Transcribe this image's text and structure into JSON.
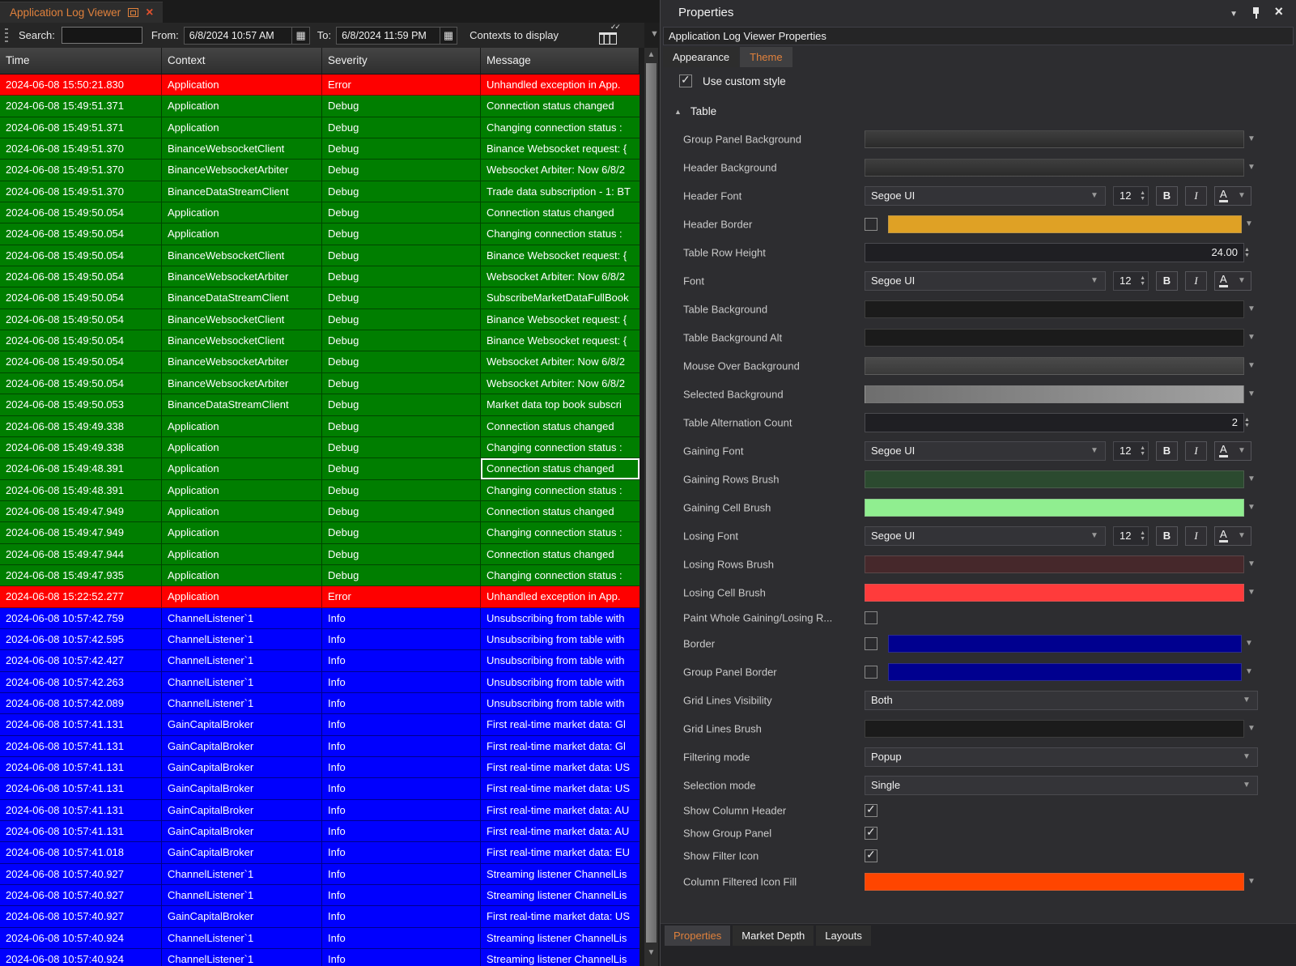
{
  "colors": {
    "accent_orange": "#E0813C",
    "severity": {
      "error": "#FE0000",
      "debug": "#007E00",
      "info": "#0000FE"
    },
    "selected_cell_outline": "#FFFFFF"
  },
  "log_viewer": {
    "tab_title": "Application Log Viewer",
    "toolbar": {
      "search_label": "Search:",
      "search_value": "",
      "from_label": "From:",
      "from_value": "6/8/2024 10:57 AM",
      "to_label": "To:",
      "to_value": "6/8/2024 11:59 PM",
      "contexts_label": "Contexts to display"
    },
    "columns": [
      "Time",
      "Context",
      "Severity",
      "Message"
    ],
    "rows": [
      {
        "time": "2024-06-08 15:50:21.830",
        "context": "Application",
        "severity": "Error",
        "message": "Unhandled exception in App."
      },
      {
        "time": "2024-06-08 15:49:51.371",
        "context": "Application",
        "severity": "Debug",
        "message": "Connection status changed"
      },
      {
        "time": "2024-06-08 15:49:51.371",
        "context": "Application",
        "severity": "Debug",
        "message": "Changing connection status :"
      },
      {
        "time": "2024-06-08 15:49:51.370",
        "context": "BinanceWebsocketClient",
        "severity": "Debug",
        "message": "Binance Websocket request: {"
      },
      {
        "time": "2024-06-08 15:49:51.370",
        "context": "BinanceWebsocketArbiter",
        "severity": "Debug",
        "message": "Websocket Arbiter: Now 6/8/2"
      },
      {
        "time": "2024-06-08 15:49:51.370",
        "context": "BinanceDataStreamClient",
        "severity": "Debug",
        "message": "Trade data subscription - 1: BT"
      },
      {
        "time": "2024-06-08 15:49:50.054",
        "context": "Application",
        "severity": "Debug",
        "message": "Connection status changed"
      },
      {
        "time": "2024-06-08 15:49:50.054",
        "context": "Application",
        "severity": "Debug",
        "message": "Changing connection status :"
      },
      {
        "time": "2024-06-08 15:49:50.054",
        "context": "BinanceWebsocketClient",
        "severity": "Debug",
        "message": "Binance Websocket request: {"
      },
      {
        "time": "2024-06-08 15:49:50.054",
        "context": "BinanceWebsocketArbiter",
        "severity": "Debug",
        "message": "Websocket Arbiter: Now 6/8/2"
      },
      {
        "time": "2024-06-08 15:49:50.054",
        "context": "BinanceDataStreamClient",
        "severity": "Debug",
        "message": "SubscribeMarketDataFullBook"
      },
      {
        "time": "2024-06-08 15:49:50.054",
        "context": "BinanceWebsocketClient",
        "severity": "Debug",
        "message": "Binance Websocket request: {"
      },
      {
        "time": "2024-06-08 15:49:50.054",
        "context": "BinanceWebsocketClient",
        "severity": "Debug",
        "message": "Binance Websocket request: {"
      },
      {
        "time": "2024-06-08 15:49:50.054",
        "context": "BinanceWebsocketArbiter",
        "severity": "Debug",
        "message": "Websocket Arbiter: Now 6/8/2"
      },
      {
        "time": "2024-06-08 15:49:50.054",
        "context": "BinanceWebsocketArbiter",
        "severity": "Debug",
        "message": "Websocket Arbiter: Now 6/8/2"
      },
      {
        "time": "2024-06-08 15:49:50.053",
        "context": "BinanceDataStreamClient",
        "severity": "Debug",
        "message": "Market data top book subscri"
      },
      {
        "time": "2024-06-08 15:49:49.338",
        "context": "Application",
        "severity": "Debug",
        "message": "Connection status changed"
      },
      {
        "time": "2024-06-08 15:49:49.338",
        "context": "Application",
        "severity": "Debug",
        "message": "Changing connection status :"
      },
      {
        "time": "2024-06-08 15:49:48.391",
        "context": "Application",
        "severity": "Debug",
        "message": "Connection status changed",
        "selected": true
      },
      {
        "time": "2024-06-08 15:49:48.391",
        "context": "Application",
        "severity": "Debug",
        "message": "Changing connection status :"
      },
      {
        "time": "2024-06-08 15:49:47.949",
        "context": "Application",
        "severity": "Debug",
        "message": "Connection status changed"
      },
      {
        "time": "2024-06-08 15:49:47.949",
        "context": "Application",
        "severity": "Debug",
        "message": "Changing connection status :"
      },
      {
        "time": "2024-06-08 15:49:47.944",
        "context": "Application",
        "severity": "Debug",
        "message": "Connection status changed"
      },
      {
        "time": "2024-06-08 15:49:47.935",
        "context": "Application",
        "severity": "Debug",
        "message": "Changing connection status :"
      },
      {
        "time": "2024-06-08 15:22:52.277",
        "context": "Application",
        "severity": "Error",
        "message": "Unhandled exception in App."
      },
      {
        "time": "2024-06-08 10:57:42.759",
        "context": "ChannelListener`1",
        "severity": "Info",
        "message": "Unsubscribing from table with"
      },
      {
        "time": "2024-06-08 10:57:42.595",
        "context": "ChannelListener`1",
        "severity": "Info",
        "message": "Unsubscribing from table with"
      },
      {
        "time": "2024-06-08 10:57:42.427",
        "context": "ChannelListener`1",
        "severity": "Info",
        "message": "Unsubscribing from table with"
      },
      {
        "time": "2024-06-08 10:57:42.263",
        "context": "ChannelListener`1",
        "severity": "Info",
        "message": "Unsubscribing from table with"
      },
      {
        "time": "2024-06-08 10:57:42.089",
        "context": "ChannelListener`1",
        "severity": "Info",
        "message": "Unsubscribing from table with"
      },
      {
        "time": "2024-06-08 10:57:41.131",
        "context": "GainCapitalBroker",
        "severity": "Info",
        "message": "First real-time market data: Gl"
      },
      {
        "time": "2024-06-08 10:57:41.131",
        "context": "GainCapitalBroker",
        "severity": "Info",
        "message": "First real-time market data: Gl"
      },
      {
        "time": "2024-06-08 10:57:41.131",
        "context": "GainCapitalBroker",
        "severity": "Info",
        "message": "First real-time market data: US"
      },
      {
        "time": "2024-06-08 10:57:41.131",
        "context": "GainCapitalBroker",
        "severity": "Info",
        "message": "First real-time market data: US"
      },
      {
        "time": "2024-06-08 10:57:41.131",
        "context": "GainCapitalBroker",
        "severity": "Info",
        "message": "First real-time market data: AU"
      },
      {
        "time": "2024-06-08 10:57:41.131",
        "context": "GainCapitalBroker",
        "severity": "Info",
        "message": "First real-time market data: AU"
      },
      {
        "time": "2024-06-08 10:57:41.018",
        "context": "GainCapitalBroker",
        "severity": "Info",
        "message": "First real-time market data: EU"
      },
      {
        "time": "2024-06-08 10:57:40.927",
        "context": "ChannelListener`1",
        "severity": "Info",
        "message": "Streaming listener ChannelLis"
      },
      {
        "time": "2024-06-08 10:57:40.927",
        "context": "ChannelListener`1",
        "severity": "Info",
        "message": "Streaming listener ChannelLis"
      },
      {
        "time": "2024-06-08 10:57:40.927",
        "context": "GainCapitalBroker",
        "severity": "Info",
        "message": "First real-time market data: US"
      },
      {
        "time": "2024-06-08 10:57:40.924",
        "context": "ChannelListener`1",
        "severity": "Info",
        "message": "Streaming listener ChannelLis"
      },
      {
        "time": "2024-06-08 10:57:40.924",
        "context": "ChannelListener`1",
        "severity": "Info",
        "message": "Streaming listener ChannelLis"
      }
    ]
  },
  "properties_panel": {
    "title": "Properties",
    "subtitle": "Application Log Viewer Properties",
    "tabs": [
      "Appearance",
      "Theme"
    ],
    "active_tab": "Theme",
    "use_custom_style": {
      "label": "Use custom style",
      "checked": true
    },
    "group_label": "Table",
    "rows": [
      {
        "type": "color",
        "label": "Group Panel Background",
        "fill": "linear-gradient(#3e3e3e,#2b2b2b)"
      },
      {
        "type": "color",
        "label": "Header Background",
        "fill": "linear-gradient(#3e3e3e,#2b2b2b)"
      },
      {
        "type": "font",
        "label": "Header Font",
        "value": "Segoe UI",
        "size": "12"
      },
      {
        "type": "checkcolor",
        "label": "Header Border",
        "fill": "#DFA125",
        "checked": false
      },
      {
        "type": "number",
        "label": "Table Row Height",
        "value": "24.00"
      },
      {
        "type": "font",
        "label": "Font",
        "value": "Segoe UI",
        "size": "12"
      },
      {
        "type": "color",
        "label": "Table Background",
        "fill": "#1b1b1b"
      },
      {
        "type": "color",
        "label": "Table Background Alt",
        "fill": "#1b1b1b"
      },
      {
        "type": "color",
        "label": "Mouse Over Background",
        "fill": "linear-gradient(#4a4a4a,#3a3a3a)"
      },
      {
        "type": "color",
        "label": "Selected Background",
        "fill": "linear-gradient(90deg,#6e6e6e,#a2a2a2)"
      },
      {
        "type": "number",
        "label": "Table Alternation Count",
        "value": "2"
      },
      {
        "type": "font",
        "label": "Gaining Font",
        "value": "Segoe UI",
        "size": "12"
      },
      {
        "type": "color",
        "label": "Gaining Rows Brush",
        "fill": "#2b4a2f"
      },
      {
        "type": "color",
        "label": "Gaining Cell Brush",
        "fill": "#90EE90"
      },
      {
        "type": "font",
        "label": "Losing Font",
        "value": "Segoe UI",
        "size": "12"
      },
      {
        "type": "color",
        "label": "Losing Rows Brush",
        "fill": "#46282b"
      },
      {
        "type": "color",
        "label": "Losing Cell Brush",
        "fill": "#ff3b3b"
      },
      {
        "type": "checkbox",
        "label": "Paint Whole Gaining/Losing R...",
        "checked": false
      },
      {
        "type": "checkcolor",
        "label": "Border",
        "fill": "#00008f",
        "checked": false
      },
      {
        "type": "checkcolor",
        "label": "Group Panel Border",
        "fill": "#00008f",
        "checked": false
      },
      {
        "type": "select",
        "label": "Grid Lines Visibility",
        "value": "Both"
      },
      {
        "type": "color",
        "label": "Grid Lines Brush",
        "fill": "#1b1b1b"
      },
      {
        "type": "select",
        "label": "Filtering mode",
        "value": "Popup"
      },
      {
        "type": "select",
        "label": "Selection mode",
        "value": "Single"
      },
      {
        "type": "checkbox",
        "label": "Show Column Header",
        "checked": true
      },
      {
        "type": "checkbox",
        "label": "Show Group Panel",
        "checked": true
      },
      {
        "type": "checkbox",
        "label": "Show Filter Icon",
        "checked": true
      },
      {
        "type": "color",
        "label": "Column Filtered Icon Fill",
        "fill": "#ff4500"
      }
    ],
    "bottom_tabs": [
      "Properties",
      "Market Depth",
      "Layouts"
    ],
    "active_bottom_tab": "Properties"
  }
}
